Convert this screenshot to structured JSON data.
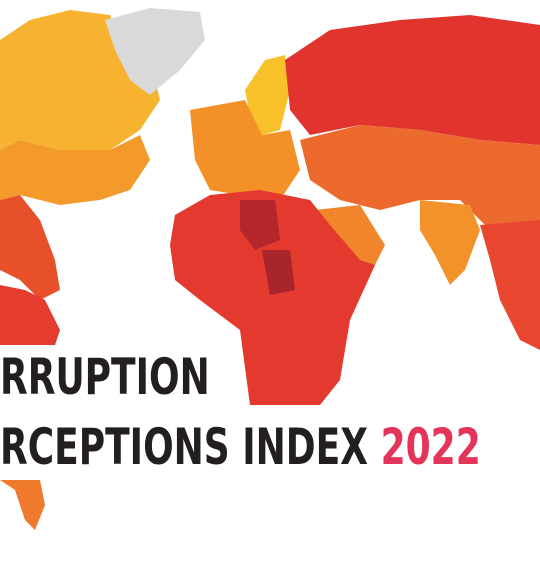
{
  "header": {
    "line1": "RRUPTION",
    "line2": "RCEPTIONS INDEX",
    "year": "2022"
  }
}
